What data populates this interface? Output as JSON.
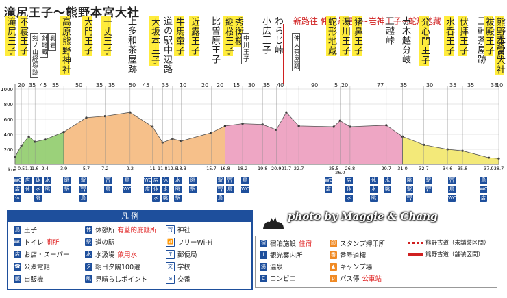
{
  "title": "滝尻王子〜熊野本宮大社",
  "new_route_note": "新路往 仲人茶屋跡~岩神王子~蛇形地藏",
  "watermark": "photo by Maggie & Chang",
  "places": [
    {
      "label": "滝尻王子",
      "hl": true,
      "small": false
    },
    {
      "label": "不寝王子",
      "hl": true,
      "small": false
    },
    {
      "label": "剣ノ山経塚跡",
      "hl": false,
      "small": true
    },
    {
      "label": "針地蔵",
      "hl": false,
      "small": true
    },
    {
      "label": "乳岩",
      "hl": false,
      "small": true
    },
    {
      "label": "高原熊野神社",
      "hl": true,
      "small": false
    },
    {
      "label": "大門王子",
      "hl": true,
      "small": false
    },
    {
      "label": "十丈王子",
      "hl": true,
      "small": false
    },
    {
      "label": "上多和茶屋跡",
      "hl": false,
      "small": false
    },
    {
      "label": "大坂本王子",
      "hl": true,
      "small": false
    },
    {
      "label": "道の駅中辺路",
      "hl": false,
      "small": false
    },
    {
      "label": "牛馬童子",
      "hl": true,
      "small": false
    },
    {
      "label": "近露王子",
      "hl": true,
      "small": false
    },
    {
      "label": "比曽原王子",
      "hl": false,
      "small": false
    },
    {
      "label": "継桜王子",
      "hl": true,
      "small": false
    },
    {
      "label": "秀衡桜",
      "hl": true,
      "small": false
    },
    {
      "label": "中川王子",
      "hl": false,
      "small": true
    },
    {
      "label": "小広王子",
      "hl": false,
      "small": false
    },
    {
      "label": "わらじ峠",
      "hl": false,
      "small": false
    },
    {
      "label": "仲人茶屋跡",
      "hl": false,
      "small": true
    },
    {
      "label": "蛇形地蔵",
      "hl": true,
      "small": false
    },
    {
      "label": "湯川王子",
      "hl": true,
      "small": false
    },
    {
      "label": "猪鼻王子",
      "hl": true,
      "small": false
    },
    {
      "label": "三越峠",
      "hl": false,
      "small": false
    },
    {
      "label": "赤木越分岐",
      "hl": false,
      "small": false
    },
    {
      "label": "発心門王子",
      "hl": true,
      "small": false
    },
    {
      "label": "水呑王子",
      "hl": true,
      "small": false
    },
    {
      "label": "伏拝王子",
      "hl": true,
      "small": false
    },
    {
      "label": "三軒茶屋跡",
      "hl": false,
      "small": false
    },
    {
      "label": "祓殿王子",
      "hl": true,
      "small": false
    },
    {
      "label": "熊野本宮大社",
      "hl": true,
      "small": false
    },
    {
      "label": "大斎原",
      "hl": false,
      "small": false
    }
  ],
  "minutes": [
    "20",
    "35",
    "45",
    "55",
    "50",
    "35",
    "35",
    "50",
    "45",
    "35",
    "10",
    "20",
    "20",
    "15",
    "30",
    "35",
    "40",
    "90",
    "5",
    "20",
    "77",
    "35",
    "30",
    "35",
    "35",
    "38",
    "10"
  ],
  "y_axis_labels": [
    "1000",
    "800",
    "600",
    "400",
    "200"
  ],
  "km_label": "km",
  "km_marks": [
    "0",
    "0.5",
    "1.1",
    "1.6",
    "2.4",
    "3.9",
    "5.7",
    "7.2",
    "9.2",
    "11",
    "11.8",
    "12.6",
    "13.3",
    "15.7",
    "16.8",
    "18.2",
    "19.8",
    "20.9",
    "21.7",
    "22.7",
    "25.5",
    "26.0",
    "26.8",
    "29.7",
    "31.0",
    "32.7",
    "34.6",
    "35.8",
    "37.9",
    "38.7"
  ],
  "legend": {
    "header": "凡 例",
    "col1": [
      {
        "icon": "鳥",
        "label": "王子"
      },
      {
        "icon": "WC",
        "label": "トイレ",
        "extra": "廁所"
      },
      {
        "icon": "店",
        "label": "お店・スーパー"
      },
      {
        "icon": "☎",
        "label": "公衆電話"
      },
      {
        "icon": "販",
        "label": "自販機"
      }
    ],
    "col2": [
      {
        "icon": "休",
        "label": "休憩所",
        "extra": "有蓋的庇護所"
      },
      {
        "icon": "駅",
        "label": "道の駅"
      },
      {
        "icon": "水",
        "label": "水汲場",
        "extra": "飲用水"
      },
      {
        "icon": "夕",
        "label": "朝日夕陽100選"
      },
      {
        "icon": "眺",
        "label": "見晴らしポイント"
      }
    ],
    "col3": [
      {
        "icon": "⛩",
        "label": "神社"
      },
      {
        "icon": "📶",
        "label": "フリーWi-Fi"
      },
      {
        "icon": "〒",
        "label": "郵便局"
      },
      {
        "icon": "文",
        "label": "学校"
      },
      {
        "icon": "⊗",
        "label": "交番"
      }
    ]
  },
  "legend2": {
    "col1": [
      {
        "icon": "宿",
        "label": "宿泊施設",
        "extra": "住宿"
      },
      {
        "icon": "i",
        "label": "観光案内所"
      },
      {
        "icon": "湯",
        "label": "温泉"
      },
      {
        "icon": "C",
        "label": "コンビニ"
      }
    ],
    "col2": [
      {
        "icon": "印",
        "label": "スタンプ押印所"
      },
      {
        "icon": "番",
        "label": "番号道標"
      },
      {
        "icon": "▲",
        "label": "キャンプ場"
      },
      {
        "icon": "ρ",
        "label": "バス停",
        "extra": "公車站"
      }
    ],
    "col3": [
      {
        "label": "熊野古道（未舗装区間）"
      },
      {
        "label": "熊野古道（舗装区間）"
      }
    ]
  },
  "colors": {
    "green": "#9bd17a",
    "orange": "#f6c08a",
    "pink": "#eea6c4",
    "yellow": "#f3e979",
    "blue": "#1e4f9c",
    "red": "#d02020"
  },
  "chart_data": {
    "type": "area",
    "title": "滝尻王子〜熊野本宮大社",
    "xlabel": "km",
    "ylabel": "m",
    "xlim": [
      0,
      38.7
    ],
    "ylim": [
      0,
      1000
    ],
    "series": [
      {
        "name": "green",
        "x": [
          0,
          0.5,
          1.1,
          1.6,
          2.4,
          3.9
        ],
        "values": [
          100,
          250,
          370,
          300,
          330,
          430
        ]
      },
      {
        "name": "orange",
        "x": [
          3.9,
          5.7,
          7.2,
          9.2,
          11,
          11.8,
          12.6,
          13.3,
          15.7,
          16.8
        ],
        "values": [
          430,
          620,
          640,
          690,
          500,
          290,
          340,
          310,
          420,
          510
        ]
      },
      {
        "name": "pink",
        "x": [
          16.8,
          18.2,
          19.8,
          20.9,
          21.7,
          22.7,
          25.5,
          26.0,
          26.8,
          29.7,
          31.0
        ],
        "values": [
          510,
          540,
          530,
          460,
          690,
          510,
          500,
          580,
          500,
          520,
          370
        ]
      },
      {
        "name": "yellow",
        "x": [
          31.0,
          32.7,
          34.6,
          35.8,
          37.9,
          38.7
        ],
        "values": [
          370,
          260,
          200,
          180,
          90,
          80
        ]
      }
    ]
  }
}
